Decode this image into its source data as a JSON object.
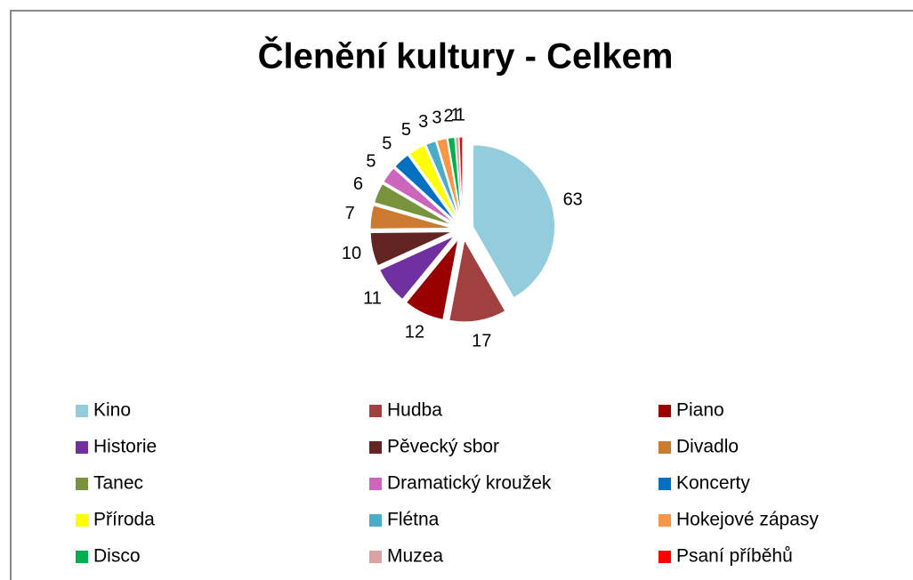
{
  "chart_data": {
    "type": "pie",
    "title": "Členění kultury - Celkem",
    "categories": [
      "Kino",
      "Hudba",
      "Piano",
      "Historie",
      "Pěvecký sbor",
      "Divadlo",
      "Tanec",
      "Dramatický kroužek",
      "Koncerty",
      "Příroda",
      "Flétna",
      "Hokejové zápasy",
      "Disco",
      "Muzea",
      "Psaní příběhů"
    ],
    "values": [
      63,
      17,
      12,
      11,
      10,
      7,
      6,
      5,
      5,
      5,
      3,
      3,
      2,
      1,
      1
    ],
    "colors": [
      "#93CDDD",
      "#A0413F",
      "#990000",
      "#7030A0",
      "#632523",
      "#CC7A30",
      "#77933C",
      "#CC66BB",
      "#0070C0",
      "#FFFF00",
      "#4BACC6",
      "#F79646",
      "#00B050",
      "#D9A3A3",
      "#FF0000"
    ],
    "legend": "bottom"
  }
}
